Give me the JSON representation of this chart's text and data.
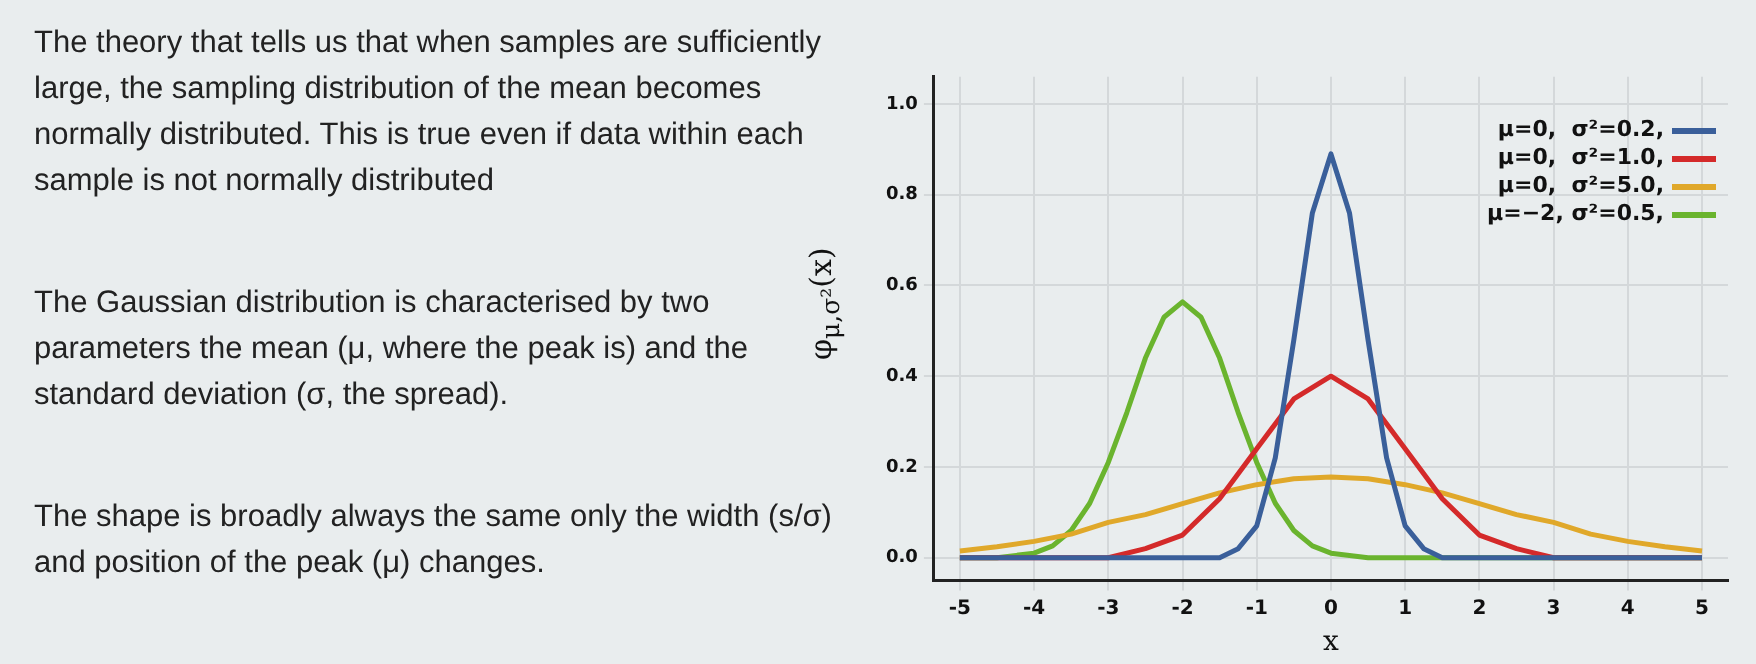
{
  "chart_data": {
    "type": "line",
    "annotations": [
      "The theory that tells us that when samples are sufficiently large, the sampling distribution of the mean becomes normally distributed. This is true even if data within each sample is not normally distributed",
      "The Gaussian distribution is characterised by two parameters the mean (μ, where the peak is) and the standard deviation (σ, the spread).",
      "The shape is broadly always the same only the width (s/σ) and position of the peak (μ) changes."
    ],
    "xlabel": "x",
    "ylabel": "φ$_{μ,σ²}$(x)",
    "xlim": [
      -5.35,
      5.35
    ],
    "xticks": [
      -5,
      -4,
      -3,
      -2,
      -1,
      0,
      1,
      2,
      3,
      4,
      5
    ],
    "ylim": [
      -0.05,
      1.06
    ],
    "yticks": [
      {
        "value": 0,
        "label": "0.0"
      },
      {
        "value": 0.2,
        "label": "0.2"
      },
      {
        "value": 0.4,
        "label": "0.4"
      },
      {
        "value": 0.6,
        "label": "0.6"
      },
      {
        "value": 0.8,
        "label": "0.8"
      },
      {
        "value": 1,
        "label": "1.0"
      }
    ],
    "grid": true,
    "legend": "top right",
    "marker": "none",
    "line_style": "solid",
    "series": [
      {
        "name": "μ=0,  σ²=0.2,",
        "color": "#3a5f9a",
        "x": [
          -5,
          -2,
          -1.5,
          -1.25,
          -1,
          -0.75,
          -0.5,
          -0.25,
          0,
          0.25,
          0.5,
          0.75,
          1,
          1.25,
          1.5,
          2,
          5
        ],
        "values": [
          0,
          0,
          0,
          0.02,
          0.07,
          0.22,
          0.48,
          0.76,
          0.89,
          0.76,
          0.48,
          0.22,
          0.07,
          0.02,
          0,
          0,
          0
        ]
      },
      {
        "name": "μ=0,  σ²=1.0,",
        "color": "#d42a2a",
        "x": [
          -5,
          -4,
          -3,
          -2.5,
          -2,
          -1.5,
          -1,
          -0.5,
          0,
          0.5,
          1,
          1.5,
          2,
          2.5,
          3,
          4,
          5
        ],
        "values": [
          0,
          0,
          0,
          0.02,
          0.05,
          0.13,
          0.24,
          0.35,
          0.4,
          0.35,
          0.24,
          0.13,
          0.05,
          0.02,
          0,
          0,
          0
        ]
      },
      {
        "name": "μ=0,  σ²=5.0,",
        "color": "#e0a82a",
        "x": [
          -5,
          -4.5,
          -4,
          -3.5,
          -3,
          -2.5,
          -2,
          -1.5,
          -1,
          -0.5,
          0,
          0.5,
          1,
          1.5,
          2,
          2.5,
          3,
          3.5,
          4,
          4.5,
          5
        ],
        "values": [
          0.015,
          0.024,
          0.036,
          0.052,
          0.078,
          0.095,
          0.119,
          0.143,
          0.161,
          0.174,
          0.178,
          0.174,
          0.161,
          0.143,
          0.119,
          0.095,
          0.078,
          0.052,
          0.036,
          0.024,
          0.015
        ]
      },
      {
        "name": "μ=−2, σ²=0.5,",
        "color": "#6ab42e",
        "x": [
          -5,
          -4.5,
          -4,
          -3.75,
          -3.5,
          -3.25,
          -3,
          -2.75,
          -2.5,
          -2.25,
          -2,
          -1.75,
          -1.5,
          -1.25,
          -1,
          -0.75,
          -0.5,
          -0.25,
          0,
          0.5,
          1,
          5
        ],
        "values": [
          0,
          0,
          0.01,
          0.026,
          0.06,
          0.12,
          0.21,
          0.32,
          0.44,
          0.53,
          0.564,
          0.53,
          0.44,
          0.32,
          0.21,
          0.12,
          0.06,
          0.026,
          0.01,
          0,
          0,
          0
        ]
      }
    ]
  }
}
